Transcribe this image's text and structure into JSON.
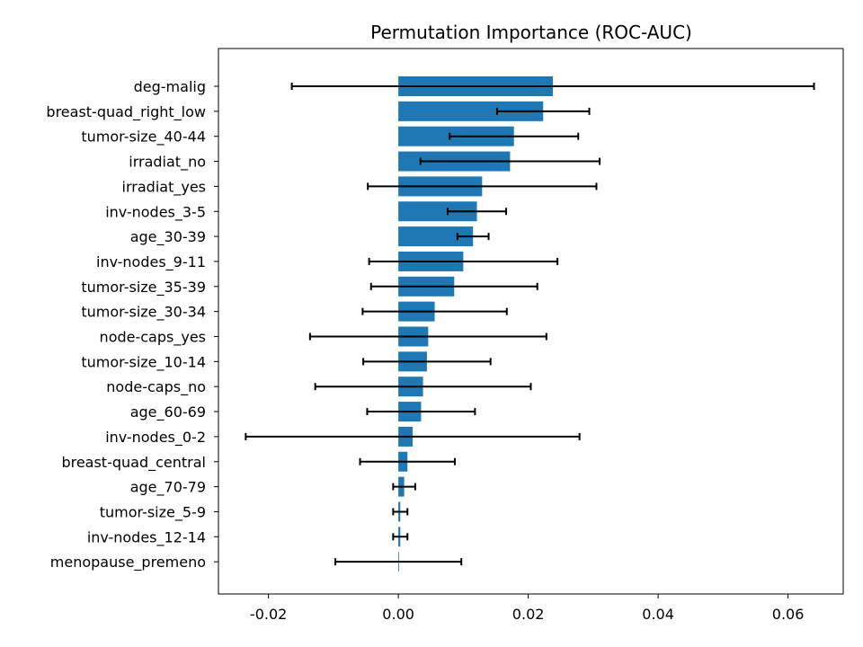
{
  "chart_data": {
    "type": "bar",
    "orientation": "horizontal",
    "title": "Permutation Importance (ROC-AUC)",
    "xlabel": "",
    "ylabel": "",
    "xlim": [
      -0.0277,
      0.0685
    ],
    "xticks": [
      -0.02,
      0.0,
      0.02,
      0.04,
      0.06
    ],
    "xtick_labels": [
      "-0.02",
      "0.00",
      "0.02",
      "0.04",
      "0.06"
    ],
    "grid": false,
    "bar_color": "#1f77b4",
    "error_color": "#000000",
    "categories": [
      "deg-malig",
      "breast-quad_right_low",
      "tumor-size_40-44",
      "irradiat_no",
      "irradiat_yes",
      "inv-nodes_3-5",
      "age_30-39",
      "inv-nodes_9-11",
      "tumor-size_35-39",
      "tumor-size_30-34",
      "node-caps_yes",
      "tumor-size_10-14",
      "node-caps_no",
      "age_60-69",
      "inv-nodes_0-2",
      "breast-quad_central",
      "age_70-79",
      "tumor-size_5-9",
      "inv-nodes_12-14",
      "menopause_premeno"
    ],
    "values": [
      0.0238,
      0.0223,
      0.0178,
      0.0172,
      0.0129,
      0.0121,
      0.0115,
      0.01,
      0.0086,
      0.0056,
      0.0046,
      0.0044,
      0.0038,
      0.0035,
      0.0022,
      0.0014,
      0.0009,
      0.0003,
      0.0003,
      0.0
    ],
    "errors": [
      0.0402,
      0.0071,
      0.0099,
      0.0138,
      0.0176,
      0.0045,
      0.0024,
      0.0145,
      0.0128,
      0.0111,
      0.0182,
      0.0098,
      0.0166,
      0.0083,
      0.0257,
      0.0073,
      0.0017,
      0.0011,
      0.0011,
      0.0097
    ]
  }
}
